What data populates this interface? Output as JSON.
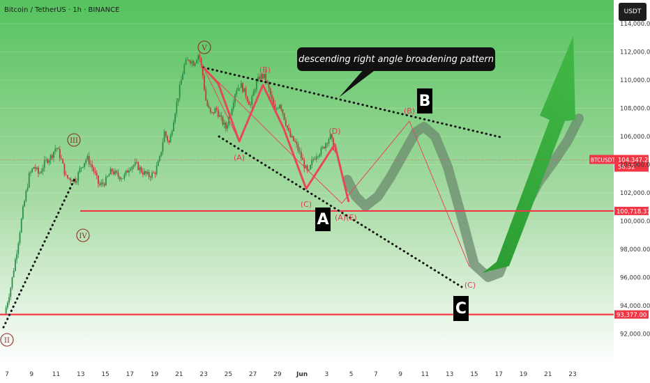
{
  "header": {
    "symbol_title": "Bitcoin / TetherUS · 1h · BINANCE"
  },
  "axis": {
    "currency_button": "USDT"
  },
  "annotation": {
    "pattern_label": "descending right angle broadening pattern"
  },
  "big_labels": [
    "A",
    "B",
    "C"
  ],
  "wave_labels": {
    "roman": [
      "II",
      "III",
      "IV",
      "V"
    ],
    "red": [
      "(A)",
      "(B)",
      "(C)",
      "(D)",
      "(A)",
      "(E)",
      "(B)",
      "(C)"
    ]
  },
  "price_tag": {
    "symbol": "BTCUSDT",
    "price": "104,347.21",
    "countdown": "56:32"
  },
  "colors": {
    "accent_green": "#2fa836",
    "red_line": "#f23645",
    "wave_red": "#e8475a",
    "projection_gray": "#6b8a6d"
  },
  "chart_data": {
    "type": "candlestick",
    "ylim": [
      91000,
      115500
    ],
    "x_tick_labels": [
      "7",
      "9",
      "11",
      "13",
      "15",
      "17",
      "19",
      "21",
      "23",
      "25",
      "27",
      "29",
      "Jun",
      "3",
      "5",
      "7",
      "9",
      "11",
      "13",
      "15",
      "17",
      "19",
      "21",
      "23"
    ],
    "y_tick_values": [
      92000,
      94000,
      96000,
      98000,
      100000,
      102000,
      104000,
      106000,
      108000,
      110000,
      112000,
      114000
    ],
    "y_tick_labels": [
      "92,000.00",
      "94,000.00",
      "96,000.00",
      "98,000.00",
      "100,000.00",
      "102,000.00",
      "104,000.00",
      "106,000.00",
      "108,000.00",
      "110,000.00",
      "112,000.00",
      "114,000.00"
    ],
    "last_price": 104347.21,
    "horizontal_levels": [
      {
        "price": 100718.37,
        "label": "100,718.37"
      },
      {
        "price": 93377.0,
        "label": "93,377.00"
      }
    ],
    "price_path": [
      {
        "d": 6.8,
        "p": 93400
      },
      {
        "d": 7.3,
        "p": 95300
      },
      {
        "d": 7.8,
        "p": 97900
      },
      {
        "d": 8.3,
        "p": 100800
      },
      {
        "d": 8.8,
        "p": 103200
      },
      {
        "d": 9.2,
        "p": 103900
      },
      {
        "d": 9.6,
        "p": 103300
      },
      {
        "d": 10.1,
        "p": 104200
      },
      {
        "d": 10.6,
        "p": 104600
      },
      {
        "d": 11.0,
        "p": 105300
      },
      {
        "d": 11.4,
        "p": 104400
      },
      {
        "d": 11.8,
        "p": 103100
      },
      {
        "d": 12.2,
        "p": 103000
      },
      {
        "d": 12.6,
        "p": 102900
      },
      {
        "d": 13.0,
        "p": 103800
      },
      {
        "d": 13.5,
        "p": 104500
      },
      {
        "d": 14.0,
        "p": 103700
      },
      {
        "d": 14.5,
        "p": 102500
      },
      {
        "d": 15.0,
        "p": 102800
      },
      {
        "d": 15.5,
        "p": 103600
      },
      {
        "d": 16.0,
        "p": 103200
      },
      {
        "d": 16.5,
        "p": 103100
      },
      {
        "d": 17.0,
        "p": 103900
      },
      {
        "d": 17.5,
        "p": 104000
      },
      {
        "d": 18.0,
        "p": 103500
      },
      {
        "d": 18.5,
        "p": 103200
      },
      {
        "d": 19.0,
        "p": 103400
      },
      {
        "d": 19.4,
        "p": 104300
      },
      {
        "d": 19.8,
        "p": 106300
      },
      {
        "d": 20.2,
        "p": 105500
      },
      {
        "d": 20.6,
        "p": 107500
      },
      {
        "d": 21.0,
        "p": 109200
      },
      {
        "d": 21.4,
        "p": 111000
      },
      {
        "d": 21.8,
        "p": 111500
      },
      {
        "d": 22.2,
        "p": 111200
      },
      {
        "d": 22.6,
        "p": 111900
      },
      {
        "d": 22.9,
        "p": 110500
      },
      {
        "d": 23.2,
        "p": 108400
      },
      {
        "d": 23.6,
        "p": 107500
      },
      {
        "d": 24.0,
        "p": 108000
      },
      {
        "d": 24.4,
        "p": 107200
      },
      {
        "d": 24.8,
        "p": 106600
      },
      {
        "d": 25.2,
        "p": 107800
      },
      {
        "d": 25.6,
        "p": 109300
      },
      {
        "d": 26.0,
        "p": 109700
      },
      {
        "d": 26.4,
        "p": 109000
      },
      {
        "d": 26.8,
        "p": 108200
      },
      {
        "d": 27.2,
        "p": 109600
      },
      {
        "d": 27.6,
        "p": 110300
      },
      {
        "d": 28.0,
        "p": 110200
      },
      {
        "d": 28.4,
        "p": 109000
      },
      {
        "d": 28.8,
        "p": 107800
      },
      {
        "d": 29.2,
        "p": 108400
      },
      {
        "d": 29.6,
        "p": 107200
      },
      {
        "d": 30.0,
        "p": 106000
      },
      {
        "d": 30.4,
        "p": 105600
      },
      {
        "d": 30.8,
        "p": 104800
      },
      {
        "d": 31.2,
        "p": 103900
      },
      {
        "d": 31.5,
        "p": 103300
      },
      {
        "d": 31.8,
        "p": 104200
      },
      {
        "d": 32.2,
        "p": 104800
      },
      {
        "d": 32.6,
        "p": 105000
      },
      {
        "d": 33.0,
        "p": 105700
      },
      {
        "d": 33.3,
        "p": 106000
      },
      {
        "d": 33.6,
        "p": 105100
      },
      {
        "d": 33.9,
        "p": 104347
      }
    ]
  }
}
